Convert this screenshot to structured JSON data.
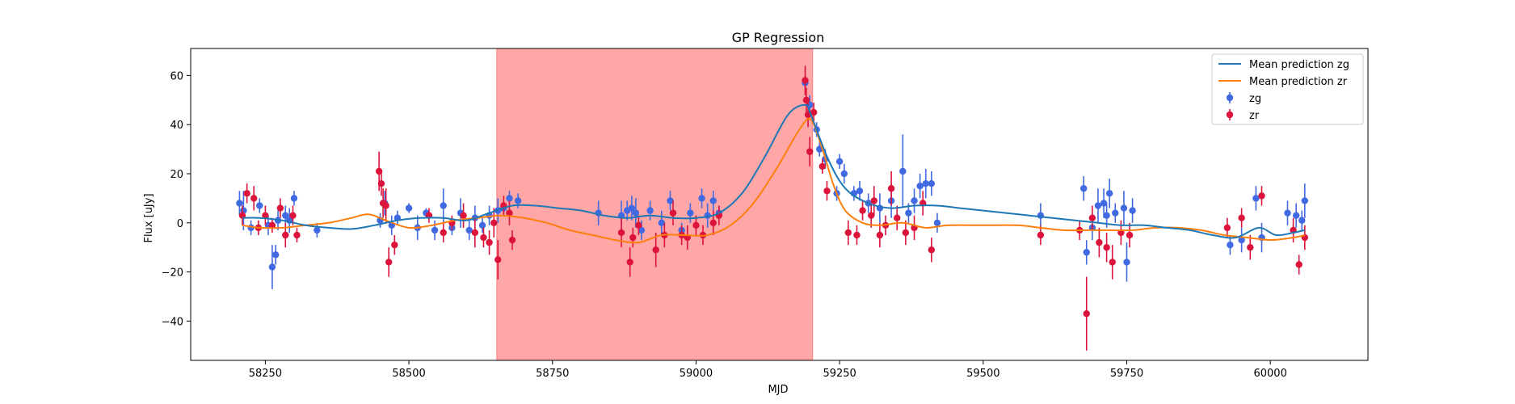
{
  "chart_data": {
    "type": "scatter",
    "title": "GP Regression",
    "xlabel": "MJD",
    "ylabel": "Flux [uJy]",
    "xlim": [
      58120,
      60170
    ],
    "ylim": [
      -56,
      71
    ],
    "x_ticks": [
      58250,
      58500,
      58750,
      59000,
      59250,
      59500,
      59750,
      60000
    ],
    "y_ticks": [
      -40,
      -20,
      0,
      20,
      40,
      60
    ],
    "grid": false,
    "legend_position": "top-right",
    "shaded_region": {
      "x_start": 58653,
      "x_end": 59203,
      "color": "#ffa7a7"
    },
    "series": [
      {
        "name": "Mean prediction zg",
        "kind": "line",
        "color": "#1f77b4",
        "x": [
          58210,
          58240,
          58280,
          58320,
          58360,
          58400,
          58440,
          58480,
          58520,
          58560,
          58600,
          58640,
          58680,
          58720,
          58760,
          58800,
          58840,
          58880,
          58920,
          58960,
          59000,
          59040,
          59080,
          59120,
          59160,
          59190,
          59200,
          59230,
          59260,
          59300,
          59340,
          59380,
          59420,
          59460,
          59500,
          59540,
          59580,
          59620,
          59660,
          59700,
          59740,
          59780,
          59820,
          59860,
          59900,
          59940,
          59980,
          60010,
          60040,
          60060
        ],
        "y": [
          2,
          2,
          1,
          -1,
          -2,
          -2.5,
          -1,
          1,
          2,
          2,
          1,
          4,
          7,
          7,
          6,
          5,
          3,
          2,
          3,
          2,
          2,
          4,
          12,
          27,
          44,
          48,
          44,
          26,
          14,
          8,
          6,
          7,
          7,
          6,
          5,
          4,
          3,
          2,
          1,
          0,
          -1,
          -1,
          -2,
          -3,
          -5,
          -6,
          -2,
          -5,
          -4,
          -3
        ]
      },
      {
        "name": "Mean prediction zr",
        "kind": "line",
        "color": "#ff7f0e",
        "x": [
          58210,
          58240,
          58280,
          58320,
          58360,
          58400,
          58430,
          58460,
          58500,
          58540,
          58580,
          58620,
          58660,
          58700,
          58740,
          58780,
          58820,
          58860,
          58900,
          58940,
          58980,
          59020,
          59060,
          59100,
          59140,
          59180,
          59200,
          59220,
          59240,
          59260,
          59290,
          59320,
          59360,
          59400,
          59440,
          59500,
          59560,
          59600,
          59640,
          59680,
          59720,
          59760,
          59800,
          59840,
          59880,
          59920,
          59960,
          60000,
          60040,
          60060
        ],
        "y": [
          -1,
          -2,
          -2,
          -1,
          0,
          2,
          3.5,
          1,
          -2,
          -1,
          1,
          2,
          3,
          2,
          0,
          -3,
          -5,
          -7,
          -8,
          -5,
          -5,
          -5,
          -1,
          8,
          22,
          38,
          42,
          30,
          15,
          5,
          0,
          -1,
          0,
          -2,
          -1,
          -1,
          -1,
          -2,
          -3,
          -3,
          -3,
          -3,
          -2,
          -2,
          -3,
          -5,
          -6,
          -7,
          -6,
          -5
        ]
      },
      {
        "name": "zg",
        "kind": "errorbar",
        "color": "#4169e1",
        "x": [
          58205,
          58212,
          58225,
          58240,
          58255,
          58262,
          58268,
          58272,
          58285,
          58292,
          58300,
          58340,
          58450,
          58458,
          58470,
          58480,
          58500,
          58515,
          58530,
          58545,
          58560,
          58575,
          58590,
          58605,
          58615,
          58628,
          58640,
          58655,
          58665,
          58675,
          58690,
          58830,
          58870,
          58880,
          58888,
          58895,
          58905,
          58920,
          58940,
          58955,
          58975,
          58990,
          59010,
          59020,
          59030,
          59040,
          59190,
          59198,
          59210,
          59215,
          59225,
          59245,
          59250,
          59258,
          59275,
          59285,
          59300,
          59320,
          59340,
          59360,
          59370,
          59380,
          59390,
          59400,
          59410,
          59420,
          59600,
          59675,
          59680,
          59690,
          59700,
          59710,
          59715,
          59720,
          59730,
          59745,
          59750,
          59760,
          59930,
          59950,
          59975,
          59985,
          60030,
          60045,
          60055,
          60060
        ],
        "y": [
          8,
          5,
          -2,
          7,
          -1,
          -18,
          -13,
          1,
          3,
          1,
          10,
          -3,
          1,
          8,
          -1,
          2,
          6,
          -2,
          4,
          -3,
          7,
          -2,
          4,
          -3,
          2,
          -1,
          3,
          5,
          6,
          10,
          9,
          4,
          3,
          5,
          6,
          4,
          -3,
          5,
          0,
          9,
          -3,
          4,
          10,
          3,
          9,
          4,
          57,
          48,
          38,
          30,
          26,
          12,
          25,
          20,
          12,
          13,
          8,
          6,
          9,
          21,
          4,
          9,
          15,
          16,
          16,
          0,
          3,
          14,
          -12,
          -2,
          7,
          8,
          3,
          12,
          4,
          6,
          -16,
          5,
          -9,
          -7,
          10,
          -6,
          4,
          3,
          1,
          9
        ],
        "err": [
          5,
          8,
          3,
          3,
          4,
          9,
          4,
          4,
          4,
          5,
          3,
          3,
          3,
          5,
          4,
          3,
          2,
          5,
          2,
          4,
          7,
          3,
          6,
          4,
          5,
          3,
          4,
          5,
          3,
          3,
          3,
          5,
          6,
          4,
          5,
          6,
          4,
          4,
          5,
          4,
          3,
          4,
          4,
          5,
          4,
          3,
          3,
          4,
          3,
          3,
          4,
          3,
          3,
          4,
          3,
          4,
          4,
          6,
          7,
          15,
          4,
          5,
          5,
          6,
          5,
          4,
          5,
          5,
          5,
          5,
          7,
          6,
          5,
          6,
          4,
          7,
          8,
          5,
          4,
          5,
          5,
          6,
          5,
          5,
          4,
          7
        ]
      },
      {
        "name": "zr",
        "kind": "errorbar",
        "color": "#dc143c",
        "x": [
          58210,
          58218,
          58230,
          58238,
          58250,
          58262,
          58276,
          58285,
          58298,
          58305,
          58448,
          58452,
          58455,
          58460,
          58465,
          58475,
          58535,
          58560,
          58575,
          58595,
          58615,
          58630,
          58640,
          58648,
          58655,
          58665,
          58675,
          58680,
          58870,
          58885,
          58890,
          58900,
          58930,
          58945,
          58960,
          58975,
          58985,
          59000,
          59012,
          59030,
          59040,
          59190,
          59192,
          59195,
          59198,
          59205,
          59220,
          59228,
          59265,
          59280,
          59290,
          59305,
          59310,
          59320,
          59330,
          59340,
          59350,
          59365,
          59380,
          59395,
          59410,
          59600,
          59668,
          59680,
          59690,
          59702,
          59715,
          59725,
          59740,
          59755,
          59925,
          59950,
          59965,
          59985,
          60040,
          60050,
          60060
        ],
        "y": [
          3,
          12,
          10,
          -2,
          3,
          -1,
          6,
          -5,
          3,
          -5,
          21,
          16,
          8,
          7,
          -16,
          -9,
          3,
          -4,
          0,
          3,
          -4,
          -6,
          -8,
          0,
          -15,
          7,
          4,
          -7,
          -4,
          -16,
          -6,
          -1,
          -11,
          -5,
          4,
          -5,
          -6,
          -1,
          -5,
          0,
          3,
          58,
          50,
          44,
          29,
          45,
          23,
          13,
          -4,
          -5,
          5,
          3,
          9,
          -5,
          -1,
          14,
          2,
          -4,
          -2,
          8,
          -11,
          -5,
          -3,
          -37,
          2,
          -8,
          -10,
          -16,
          -4,
          -5,
          -2,
          2,
          -10,
          11,
          -3,
          -17,
          -6
        ],
        "err": [
          4,
          4,
          5,
          3,
          4,
          3,
          4,
          5,
          4,
          3,
          8,
          5,
          6,
          7,
          6,
          4,
          3,
          4,
          3,
          5,
          6,
          4,
          5,
          6,
          8,
          4,
          5,
          4,
          6,
          6,
          4,
          4,
          7,
          5,
          5,
          4,
          5,
          4,
          4,
          5,
          4,
          6,
          5,
          5,
          6,
          4,
          3,
          4,
          5,
          4,
          4,
          5,
          6,
          5,
          4,
          7,
          5,
          5,
          5,
          5,
          5,
          4,
          4,
          15,
          5,
          6,
          6,
          7,
          5,
          5,
          4,
          4,
          5,
          4,
          5,
          4,
          5
        ]
      }
    ]
  }
}
